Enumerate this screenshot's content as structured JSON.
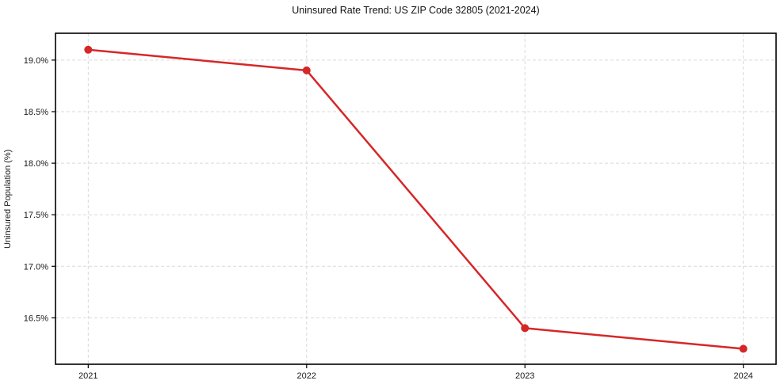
{
  "chart_data": {
    "type": "line",
    "title": "Uninsured Rate Trend: US ZIP Code 32805 (2021-2024)",
    "xlabel": "",
    "ylabel": "Uninsured Population (%)",
    "x": [
      2021,
      2022,
      2023,
      2024
    ],
    "series": [
      {
        "name": "Uninsured rate",
        "values": [
          19.1,
          18.9,
          16.4,
          16.2
        ]
      }
    ],
    "xticks": {
      "values": [
        2021,
        2022,
        2023,
        2024
      ],
      "labels": [
        "2021",
        "2022",
        "2023",
        "2024"
      ]
    },
    "yticks": {
      "values": [
        16.5,
        17.0,
        17.5,
        18.0,
        18.5,
        19.0
      ],
      "labels": [
        "16.5%",
        "17.0%",
        "17.5%",
        "18.0%",
        "18.5%",
        "19.0%"
      ]
    },
    "xlim": [
      2020.85,
      2024.15
    ],
    "ylim": [
      16.05,
      19.26
    ],
    "grid": "both-dashed",
    "legend": "none",
    "line_color": "#d62728",
    "marker": "circle",
    "marker_radius": 5,
    "line_width": 2.5,
    "grid_color": "#d9d9d9",
    "axis_color": "#000000",
    "tick_label_color": "#1a1a1a",
    "background": "#ffffff"
  }
}
